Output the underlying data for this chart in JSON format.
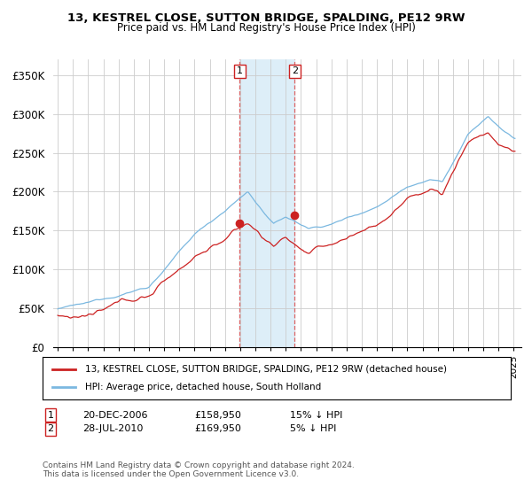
{
  "title": "13, KESTREL CLOSE, SUTTON BRIDGE, SPALDING, PE12 9RW",
  "subtitle": "Price paid vs. HM Land Registry's House Price Index (HPI)",
  "ylim": [
    0,
    370000
  ],
  "yticks": [
    0,
    50000,
    100000,
    150000,
    200000,
    250000,
    300000,
    350000
  ],
  "ytick_labels": [
    "£0",
    "£50K",
    "£100K",
    "£150K",
    "£200K",
    "£250K",
    "£300K",
    "£350K"
  ],
  "t1_year": 2006.97,
  "t1_price": 158950,
  "t2_year": 2010.58,
  "t2_price": 169950,
  "hpi_line_color": "#7bb8e0",
  "price_line_color": "#cc2222",
  "background_color": "#ffffff",
  "grid_color": "#cccccc",
  "shade_color": "#ddeef8",
  "dash_color": "#dd6666",
  "legend_label_house": "13, KESTREL CLOSE, SUTTON BRIDGE, SPALDING, PE12 9RW (detached house)",
  "legend_label_hpi": "HPI: Average price, detached house, South Holland",
  "footnote": "Contains HM Land Registry data © Crown copyright and database right 2024.\nThis data is licensed under the Open Government Licence v3.0.",
  "xmin": 1994.7,
  "xmax": 2025.5
}
